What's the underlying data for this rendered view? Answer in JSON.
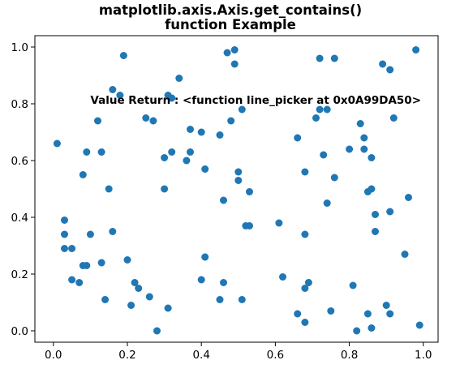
{
  "chart_data": {
    "type": "scatter",
    "title_lines": [
      "matplotlib.axis.Axis.get_contains()",
      "function Example"
    ],
    "annotation": {
      "text": "Value Return : <function line_picker at 0x0A99DA50>",
      "x": 0.1,
      "y": 0.8
    },
    "xlim": [
      -0.05,
      1.04
    ],
    "ylim": [
      -0.04,
      1.04
    ],
    "x_ticks": [
      0.0,
      0.2,
      0.4,
      0.6,
      0.8,
      1.0
    ],
    "y_ticks": [
      0.0,
      0.2,
      0.4,
      0.6,
      0.8,
      1.0
    ],
    "x_tick_labels": [
      "0.0",
      "0.2",
      "0.4",
      "0.6",
      "0.8",
      "1.0"
    ],
    "y_tick_labels": [
      "0.0",
      "0.2",
      "0.4",
      "0.6",
      "0.8",
      "1.0"
    ],
    "grid": false,
    "color": "#1f77b4",
    "points": [
      [
        0.01,
        0.66
      ],
      [
        0.03,
        0.39
      ],
      [
        0.03,
        0.34
      ],
      [
        0.03,
        0.29
      ],
      [
        0.05,
        0.18
      ],
      [
        0.05,
        0.29
      ],
      [
        0.07,
        0.17
      ],
      [
        0.08,
        0.23
      ],
      [
        0.08,
        0.55
      ],
      [
        0.09,
        0.23
      ],
      [
        0.09,
        0.63
      ],
      [
        0.1,
        0.34
      ],
      [
        0.12,
        0.74
      ],
      [
        0.13,
        0.24
      ],
      [
        0.13,
        0.63
      ],
      [
        0.14,
        0.11
      ],
      [
        0.15,
        0.5
      ],
      [
        0.16,
        0.85
      ],
      [
        0.16,
        0.35
      ],
      [
        0.18,
        0.83
      ],
      [
        0.19,
        0.97
      ],
      [
        0.2,
        0.25
      ],
      [
        0.21,
        0.09
      ],
      [
        0.22,
        0.17
      ],
      [
        0.23,
        0.15
      ],
      [
        0.25,
        0.75
      ],
      [
        0.26,
        0.12
      ],
      [
        0.27,
        0.74
      ],
      [
        0.28,
        0.0
      ],
      [
        0.3,
        0.61
      ],
      [
        0.3,
        0.5
      ],
      [
        0.31,
        0.83
      ],
      [
        0.31,
        0.08
      ],
      [
        0.32,
        0.63
      ],
      [
        0.32,
        0.82
      ],
      [
        0.34,
        0.89
      ],
      [
        0.36,
        0.6
      ],
      [
        0.37,
        0.71
      ],
      [
        0.37,
        0.63
      ],
      [
        0.4,
        0.7
      ],
      [
        0.4,
        0.18
      ],
      [
        0.41,
        0.26
      ],
      [
        0.41,
        0.57
      ],
      [
        0.45,
        0.69
      ],
      [
        0.45,
        0.11
      ],
      [
        0.46,
        0.46
      ],
      [
        0.46,
        0.17
      ],
      [
        0.47,
        0.98
      ],
      [
        0.48,
        0.74
      ],
      [
        0.49,
        0.99
      ],
      [
        0.49,
        0.94
      ],
      [
        0.5,
        0.53
      ],
      [
        0.5,
        0.56
      ],
      [
        0.51,
        0.78
      ],
      [
        0.51,
        0.11
      ],
      [
        0.52,
        0.37
      ],
      [
        0.53,
        0.49
      ],
      [
        0.53,
        0.37
      ],
      [
        0.61,
        0.38
      ],
      [
        0.62,
        0.19
      ],
      [
        0.66,
        0.68
      ],
      [
        0.66,
        0.06
      ],
      [
        0.68,
        0.56
      ],
      [
        0.68,
        0.03
      ],
      [
        0.68,
        0.34
      ],
      [
        0.68,
        0.15
      ],
      [
        0.69,
        0.17
      ],
      [
        0.71,
        0.75
      ],
      [
        0.72,
        0.96
      ],
      [
        0.72,
        0.78
      ],
      [
        0.73,
        0.62
      ],
      [
        0.74,
        0.45
      ],
      [
        0.74,
        0.78
      ],
      [
        0.75,
        0.07
      ],
      [
        0.76,
        0.54
      ],
      [
        0.76,
        0.96
      ],
      [
        0.8,
        0.64
      ],
      [
        0.81,
        0.16
      ],
      [
        0.82,
        0.0
      ],
      [
        0.83,
        0.73
      ],
      [
        0.84,
        0.68
      ],
      [
        0.84,
        0.64
      ],
      [
        0.85,
        0.49
      ],
      [
        0.85,
        0.06
      ],
      [
        0.86,
        0.5
      ],
      [
        0.86,
        0.61
      ],
      [
        0.86,
        0.01
      ],
      [
        0.87,
        0.35
      ],
      [
        0.87,
        0.41
      ],
      [
        0.89,
        0.94
      ],
      [
        0.9,
        0.09
      ],
      [
        0.91,
        0.92
      ],
      [
        0.91,
        0.42
      ],
      [
        0.91,
        0.06
      ],
      [
        0.92,
        0.75
      ],
      [
        0.95,
        0.27
      ],
      [
        0.96,
        0.47
      ],
      [
        0.98,
        0.99
      ],
      [
        0.99,
        0.02
      ]
    ]
  }
}
